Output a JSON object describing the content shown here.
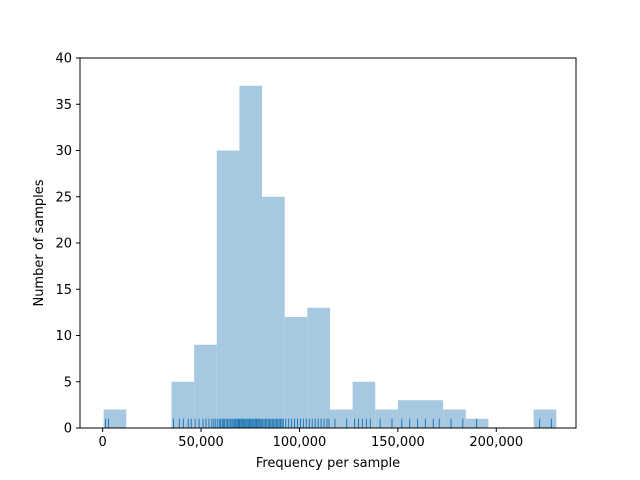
{
  "chart_data": {
    "type": "bar",
    "title": "",
    "xlabel": "Frequency per sample",
    "ylabel": "Number of samples",
    "xlim": [
      -11500,
      240500
    ],
    "ylim": [
      0,
      40
    ],
    "xticks": [
      {
        "value": 0,
        "label": "0"
      },
      {
        "value": 50000,
        "label": "50,000"
      },
      {
        "value": 100000,
        "label": "100,000"
      },
      {
        "value": 150000,
        "label": "150,000"
      },
      {
        "value": 200000,
        "label": "200,000"
      }
    ],
    "yticks": [
      {
        "value": 0,
        "label": "0"
      },
      {
        "value": 5,
        "label": "5"
      },
      {
        "value": 10,
        "label": "10"
      },
      {
        "value": 15,
        "label": "15"
      },
      {
        "value": 20,
        "label": "20"
      },
      {
        "value": 25,
        "label": "25"
      },
      {
        "value": 30,
        "label": "30"
      },
      {
        "value": 35,
        "label": "35"
      },
      {
        "value": 40,
        "label": "40"
      }
    ],
    "bins": [
      {
        "x0": 500,
        "x1": 12000,
        "count": 2
      },
      {
        "x0": 12000,
        "x1": 23500,
        "count": 0
      },
      {
        "x0": 23500,
        "x1": 35000,
        "count": 0
      },
      {
        "x0": 35000,
        "x1": 46500,
        "count": 5
      },
      {
        "x0": 46500,
        "x1": 58000,
        "count": 9
      },
      {
        "x0": 58000,
        "x1": 69500,
        "count": 30
      },
      {
        "x0": 69500,
        "x1": 81000,
        "count": 37
      },
      {
        "x0": 81000,
        "x1": 92500,
        "count": 25
      },
      {
        "x0": 92500,
        "x1": 104000,
        "count": 12
      },
      {
        "x0": 104000,
        "x1": 115500,
        "count": 13
      },
      {
        "x0": 115500,
        "x1": 127000,
        "count": 2
      },
      {
        "x0": 127000,
        "x1": 138500,
        "count": 5
      },
      {
        "x0": 138500,
        "x1": 150000,
        "count": 2
      },
      {
        "x0": 150000,
        "x1": 161500,
        "count": 3
      },
      {
        "x0": 161500,
        "x1": 173000,
        "count": 3
      },
      {
        "x0": 173000,
        "x1": 184500,
        "count": 2
      },
      {
        "x0": 184500,
        "x1": 196000,
        "count": 1
      },
      {
        "x0": 196000,
        "x1": 207500,
        "count": 0
      },
      {
        "x0": 207500,
        "x1": 219000,
        "count": 0
      },
      {
        "x0": 219000,
        "x1": 230500,
        "count": 2
      }
    ],
    "rug": [
      1500,
      3000,
      36000,
      39000,
      41000,
      43500,
      45000,
      47000,
      49000,
      51000,
      52500,
      54000,
      55500,
      56500,
      57500,
      58500,
      59500,
      60000,
      60800,
      61500,
      62000,
      62800,
      63500,
      64200,
      65000,
      65700,
      66300,
      67000,
      67600,
      68200,
      68800,
      69300,
      69800,
      70400,
      71000,
      71600,
      72200,
      72800,
      73400,
      74000,
      74600,
      75200,
      75800,
      76400,
      77000,
      77600,
      78200,
      78800,
      79400,
      80000,
      80600,
      81300,
      82000,
      82700,
      83400,
      84100,
      84800,
      85500,
      86200,
      86900,
      87600,
      88300,
      89000,
      89700,
      90400,
      91100,
      91800,
      93000,
      94500,
      96000,
      97500,
      99000,
      100500,
      102000,
      103500,
      105000,
      106500,
      108000,
      109500,
      111000,
      112500,
      114000,
      115000,
      118000,
      124000,
      128000,
      130000,
      132000,
      134000,
      136000,
      141000,
      147000,
      152000,
      156000,
      160000,
      164000,
      168000,
      171000,
      177000,
      183000,
      190000,
      222000,
      228000
    ],
    "colors": {
      "bar": "#a6c8e0",
      "rug": "#1f77b4"
    }
  }
}
